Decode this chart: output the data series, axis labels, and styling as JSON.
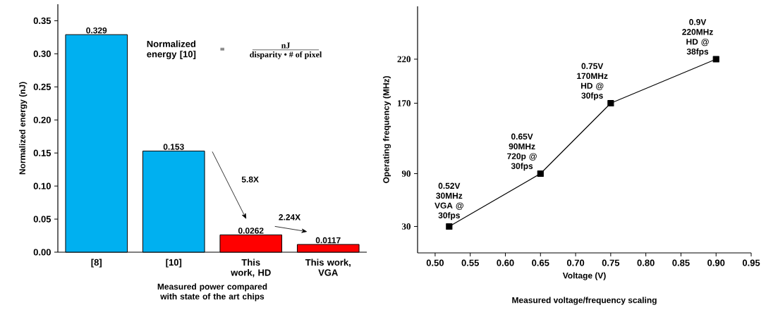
{
  "chart_data": [
    {
      "type": "bar",
      "ylabel": "Normalized energy (nJ)",
      "xlabel": "Measured power compared with state of the art chips",
      "categories": [
        "[8]",
        "[10]",
        "This work, HD",
        "This work, VGA"
      ],
      "values": [
        0.329,
        0.153,
        0.0262,
        0.0117
      ],
      "colors": [
        "#00b0f0",
        "#00b0f0",
        "#ff0000",
        "#ff0000"
      ],
      "data_labels": true,
      "ylim": [
        0,
        0.375
      ],
      "yticks": [
        {
          "value": 0,
          "label": "0.00"
        },
        {
          "value": 0.05,
          "label": "0.05"
        },
        {
          "value": 0.1,
          "label": "0.10"
        },
        {
          "value": 0.15,
          "label": "0.15"
        },
        {
          "value": 0.2,
          "label": "0.20"
        },
        {
          "value": 0.25,
          "label": "0.25"
        },
        {
          "value": 0.3,
          "label": "0.30"
        },
        {
          "value": 0.35,
          "label": "0.35"
        }
      ],
      "annotations": [
        "Normalized energy [10]",
        "=",
        "nJ",
        "disparity • # of pixel",
        "5.8X",
        "2.24X"
      ]
    },
    {
      "type": "line",
      "xlabel": "Voltage (V)",
      "ylabel": "Operating frequency (MHz)",
      "x": [
        0.52,
        0.65,
        0.75,
        0.9
      ],
      "values": [
        30,
        90,
        170,
        220
      ],
      "color": "#000000",
      "marker": "square",
      "line_style": "solid",
      "xlim": [
        0.475,
        0.95
      ],
      "ylim": [
        0,
        280
      ],
      "xticks": [
        {
          "value": 0.5,
          "label": "0.50"
        },
        {
          "value": 0.55,
          "label": "0.55"
        },
        {
          "value": 0.6,
          "label": "0.60"
        },
        {
          "value": 0.65,
          "label": "0.65"
        },
        {
          "value": 0.7,
          "label": "0.70"
        },
        {
          "value": 0.75,
          "label": "0.75"
        },
        {
          "value": 0.8,
          "label": "0.80"
        },
        {
          "value": 0.85,
          "label": "0.85"
        },
        {
          "value": 0.9,
          "label": "0.90"
        },
        {
          "value": 0.95,
          "label": "0.95"
        }
      ],
      "yticks": [
        30,
        90,
        170,
        220
      ],
      "annotations": [
        {
          "text": "0.52V 30MHz VGA @ 30fps",
          "x": 0.52,
          "y": 30
        },
        {
          "text": "0.65V 90MHz 720p @ 30fps",
          "x": 0.65,
          "y": 90
        },
        {
          "text": "0.75V 170MHz HD @ 30fps",
          "x": 0.75,
          "y": 170
        },
        {
          "text": "0.9V 220MHz HD @ 38fps",
          "x": 0.9,
          "y": 220
        },
        "Measured voltage/frequency scaling"
      ]
    }
  ]
}
